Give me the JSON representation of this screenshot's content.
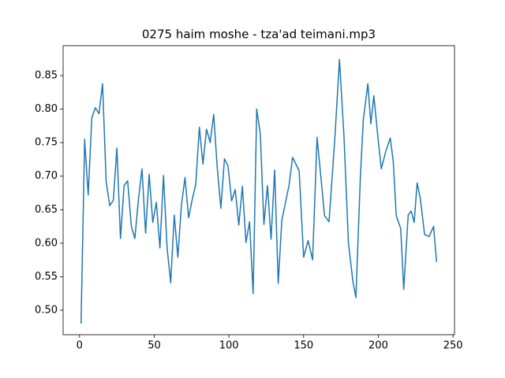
{
  "chart_data": {
    "type": "line",
    "title": "0275 haim moshe - tza'ad teimani.mp3",
    "x": [
      1,
      3.4,
      5.8,
      8.2,
      10.6,
      13,
      15.4,
      17.8,
      20.2,
      22.6,
      25,
      27.4,
      29.8,
      32.2,
      34.6,
      37,
      39.4,
      41.8,
      44.2,
      46.6,
      49,
      51.4,
      53.8,
      56.2,
      58.6,
      61,
      63.4,
      65.8,
      68.2,
      70.6,
      73,
      75.4,
      77.8,
      80.2,
      82.6,
      85,
      87.4,
      89.8,
      92.2,
      94.6,
      97,
      99.4,
      101.8,
      104.2,
      106.6,
      109,
      111.4,
      113.8,
      116.2,
      118.6,
      121,
      123.4,
      125.8,
      128.2,
      130.6,
      133,
      135.4,
      137.8,
      140.2,
      142.6,
      147,
      150,
      153,
      156,
      159,
      161.5,
      164,
      167,
      171,
      174,
      177,
      180,
      183,
      185,
      188,
      190,
      193,
      195,
      197,
      200,
      202,
      205,
      208,
      210,
      212,
      215,
      217,
      220,
      222,
      224,
      226,
      228,
      231,
      234,
      237,
      239
    ],
    "series": [
      {
        "color": "#1f77b4",
        "values": [
          0.48,
          0.755,
          0.672,
          0.787,
          0.802,
          0.793,
          0.838,
          0.692,
          0.656,
          0.664,
          0.742,
          0.607,
          0.686,
          0.693,
          0.626,
          0.607,
          0.665,
          0.711,
          0.615,
          0.703,
          0.631,
          0.661,
          0.593,
          0.701,
          0.593,
          0.541,
          0.642,
          0.579,
          0.657,
          0.698,
          0.638,
          0.665,
          0.688,
          0.773,
          0.718,
          0.77,
          0.75,
          0.792,
          0.712,
          0.652,
          0.726,
          0.715,
          0.663,
          0.68,
          0.627,
          0.685,
          0.601,
          0.632,
          0.525,
          0.8,
          0.763,
          0.628,
          0.686,
          0.606,
          0.709,
          0.54,
          0.634,
          0.66,
          0.686,
          0.728,
          0.708,
          0.579,
          0.604,
          0.575,
          0.758,
          0.7,
          0.641,
          0.632,
          0.76,
          0.874,
          0.76,
          0.6,
          0.543,
          0.519,
          0.7,
          0.785,
          0.838,
          0.778,
          0.82,
          0.752,
          0.711,
          0.737,
          0.757,
          0.722,
          0.641,
          0.622,
          0.531,
          0.642,
          0.648,
          0.631,
          0.69,
          0.668,
          0.613,
          0.61,
          0.625,
          0.572
        ]
      }
    ],
    "xlim": [
      -11,
      251
    ],
    "ylim": [
      0.4636,
      0.8946
    ],
    "xticks": [
      0,
      50,
      100,
      150,
      200,
      250
    ],
    "yticks": [
      {
        "value": 0.5,
        "label": "0.50"
      },
      0.55,
      {
        "value": 0.6,
        "label": "0.60"
      },
      0.65,
      {
        "value": 0.7,
        "label": "0.70"
      },
      0.75,
      {
        "value": 0.8,
        "label": "0.80"
      },
      0.85
    ]
  }
}
